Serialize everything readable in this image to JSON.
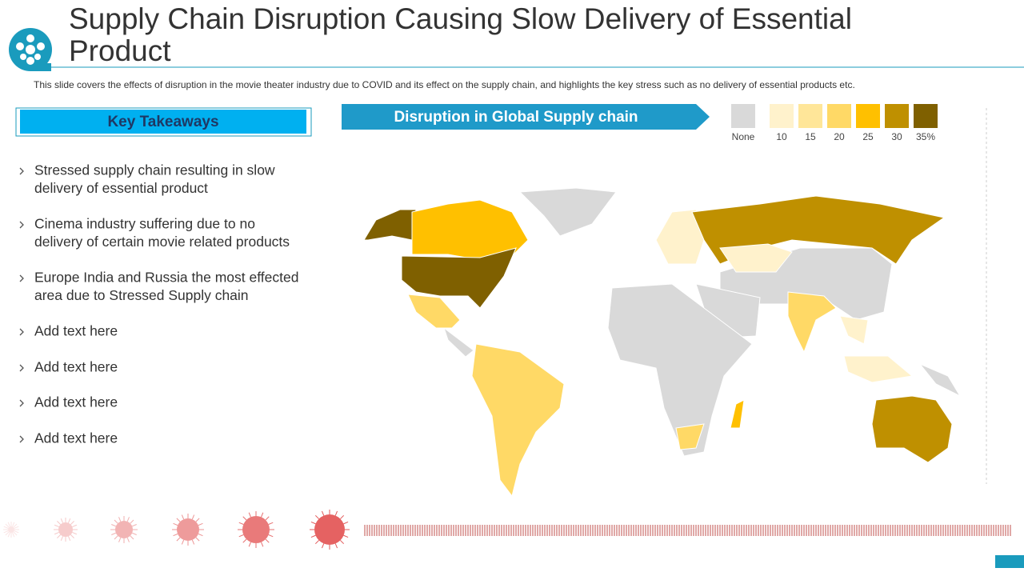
{
  "header": {
    "title_line1": "Supply Chain Disruption Causing Slow Delivery of Essential",
    "title_line2": "Product",
    "description": "This slide covers the effects of disruption in the movie theater industry due to COVID and its effect on the supply chain, and highlights the key stress such as no delivery of essential products etc."
  },
  "takeaways": {
    "heading": "Key Takeaways",
    "items": [
      [
        "Stressed supply chain resulting in slow",
        "delivery of essential product"
      ],
      [
        "Cinema industry suffering due to no",
        "delivery of certain movie related products"
      ],
      [
        "Europe India and Russia the most effected",
        "area due to Stressed Supply chain"
      ],
      [
        "Add text here"
      ],
      [
        "Add text here"
      ],
      [
        "Add text here"
      ],
      [
        "Add text here"
      ]
    ]
  },
  "map": {
    "title": "Disruption in Global Supply chain",
    "legend": [
      {
        "label": "None",
        "color": "#d9d9d9"
      },
      {
        "label": "10",
        "color": "#fff2cc"
      },
      {
        "label": "15",
        "color": "#ffe699"
      },
      {
        "label": "20",
        "color": "#ffd966"
      },
      {
        "label": "25",
        "color": "#ffc000"
      },
      {
        "label": "30",
        "color": "#bf9000"
      },
      {
        "label": "35%",
        "color": "#7f6000"
      }
    ]
  }
}
